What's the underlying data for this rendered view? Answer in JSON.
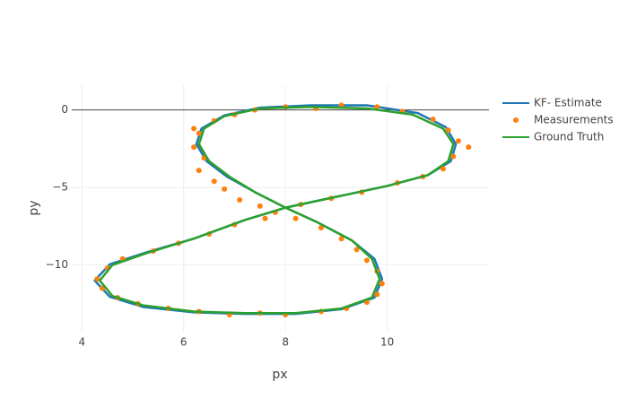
{
  "chart_data": {
    "type": "line",
    "xlabel": "px",
    "ylabel": "py",
    "xlim": [
      3.8,
      12
    ],
    "ylim": [
      -14.3,
      1.6
    ],
    "xticks": [
      4,
      6,
      8,
      10
    ],
    "yticks": [
      0,
      {
        "value": -5,
        "label": "−5"
      },
      {
        "value": -10,
        "label": "−10"
      }
    ],
    "grid": true,
    "zeroline": true,
    "legend": "right",
    "series": [
      {
        "name": "KF- Estimate",
        "color": "#1f77b4",
        "mode": "lines",
        "x": [
          8,
          9,
          10,
          10.8,
          11.25,
          11.35,
          11.15,
          10.6,
          9.6,
          8.5,
          7.5,
          6.8,
          6.35,
          6.25,
          6.45,
          6.85,
          7.4,
          8,
          8.6,
          9.3,
          9.75,
          9.9,
          9.75,
          9.1,
          8.2,
          7.2,
          6.2,
          5.2,
          4.55,
          4.25,
          4.55,
          5.3,
          6.2,
          7.2,
          8
        ],
        "values": [
          -6.3,
          -5.6,
          -4.9,
          -4.2,
          -3.3,
          -2.2,
          -1.1,
          -0.2,
          0.3,
          0.3,
          0.15,
          -0.35,
          -1.2,
          -2.2,
          -3.3,
          -4.3,
          -5.3,
          -6.3,
          -7.2,
          -8.4,
          -9.6,
          -10.9,
          -12.1,
          -12.85,
          -13.15,
          -13.15,
          -13.05,
          -12.7,
          -12.05,
          -11,
          -9.95,
          -9.15,
          -8.3,
          -7.1,
          -6.3
        ]
      },
      {
        "name": "Measurements",
        "color": "#ff7f0e",
        "mode": "markers",
        "x": [
          8.3,
          8.9,
          9.5,
          10.2,
          10.7,
          11.1,
          11.3,
          11.4,
          11.2,
          10.9,
          10.3,
          9.8,
          9.1,
          8.6,
          8.0,
          7.4,
          7.0,
          6.6,
          6.3,
          6.2,
          6.4,
          6.3,
          6.6,
          6.8,
          7.1,
          7.5,
          7.8,
          8.2,
          8.7,
          9.1,
          9.4,
          9.6,
          9.8,
          9.9,
          9.8,
          9.6,
          9.2,
          8.7,
          8.0,
          7.5,
          6.9,
          6.3,
          5.7,
          5.1,
          4.7,
          4.4,
          4.3,
          4.5,
          4.8,
          5.4,
          5.9,
          6.5,
          7.0,
          7.6,
          11.6,
          6.2
        ],
        "values": [
          -6.1,
          -5.7,
          -5.3,
          -4.7,
          -4.3,
          -3.8,
          -3.0,
          -2.0,
          -1.3,
          -0.6,
          -0.1,
          0.2,
          0.3,
          0.1,
          0.2,
          0.0,
          -0.3,
          -0.7,
          -1.5,
          -2.4,
          -3.1,
          -3.9,
          -4.6,
          -5.1,
          -5.8,
          -6.2,
          -6.6,
          -7.0,
          -7.6,
          -8.3,
          -9.0,
          -9.7,
          -10.4,
          -11.2,
          -11.9,
          -12.4,
          -12.8,
          -13.0,
          -13.2,
          -13.1,
          -13.2,
          -13.0,
          -12.8,
          -12.5,
          -12.1,
          -11.5,
          -10.9,
          -10.2,
          -9.6,
          -9.1,
          -8.6,
          -8.0,
          -7.4,
          -7.0,
          -2.4,
          -1.2
        ]
      },
      {
        "name": "Ground Truth",
        "color": "#2ca02c",
        "mode": "lines",
        "x": [
          8,
          9,
          10,
          10.8,
          11.2,
          11.3,
          11.1,
          10.5,
          9.6,
          8.5,
          7.5,
          6.8,
          6.4,
          6.3,
          6.5,
          6.9,
          7.4,
          8,
          8.6,
          9.3,
          9.7,
          9.85,
          9.7,
          9.1,
          8.2,
          7.2,
          6.2,
          5.2,
          4.6,
          4.35,
          4.6,
          5.3,
          6.2,
          7.2,
          8
        ],
        "values": [
          -6.3,
          -5.6,
          -4.9,
          -4.2,
          -3.3,
          -2.2,
          -1.2,
          -0.3,
          0.1,
          0.2,
          0.1,
          -0.4,
          -1.2,
          -2.2,
          -3.3,
          -4.3,
          -5.3,
          -6.3,
          -7.2,
          -8.4,
          -9.6,
          -10.9,
          -12.1,
          -12.8,
          -13.1,
          -13.1,
          -13,
          -12.6,
          -12,
          -11,
          -10,
          -9.2,
          -8.3,
          -7.1,
          -6.3
        ]
      }
    ]
  }
}
